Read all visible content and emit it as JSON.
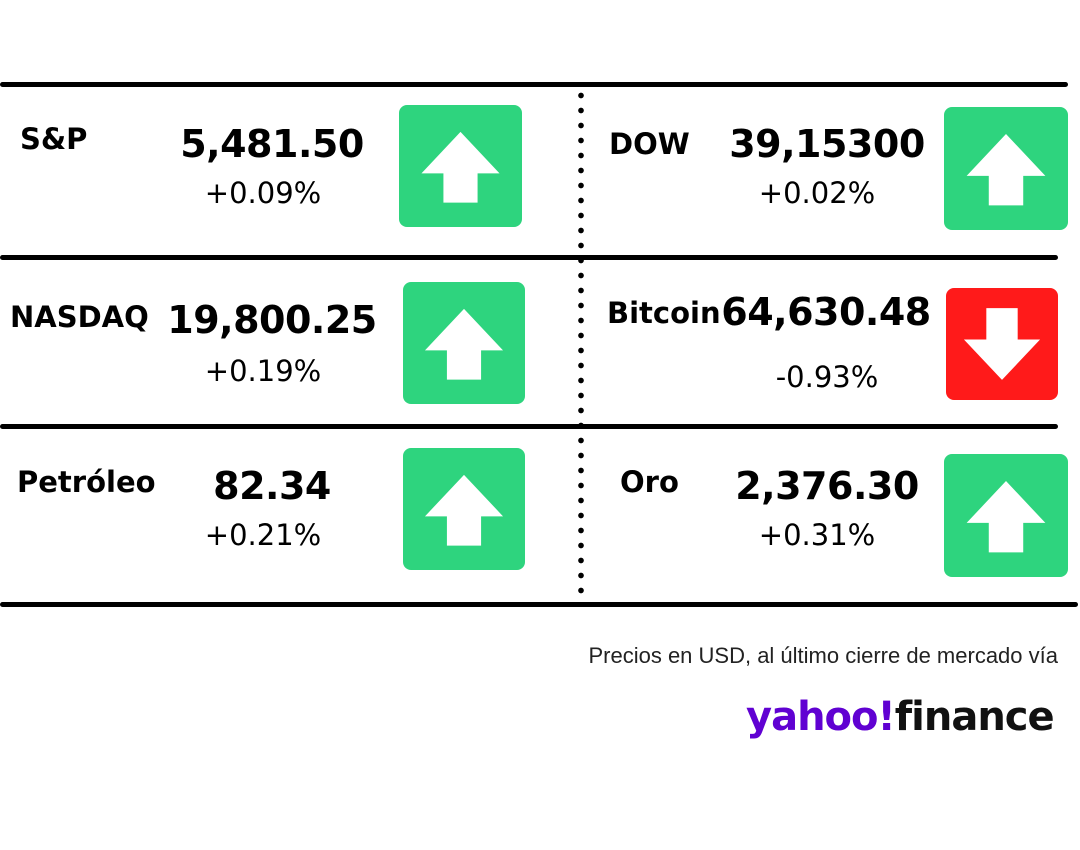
{
  "colors": {
    "up": "#2ed47e",
    "down": "#ff1a1a",
    "text": "#000000",
    "logo_purple": "#6001d2"
  },
  "tickers": [
    {
      "label": "S&P",
      "value": "5,481.50",
      "change": "+0.09%",
      "direction": "up",
      "icon": "arrow-up-icon"
    },
    {
      "label": "DOW",
      "value": "39,15300",
      "change": "+0.02%",
      "direction": "up",
      "icon": "arrow-up-icon"
    },
    {
      "label": "NASDAQ",
      "value": "19,800.25",
      "change": "+0.19%",
      "direction": "up",
      "icon": "arrow-up-icon"
    },
    {
      "label": "Bitcoin",
      "value": "64,630.48",
      "change": "-0.93%",
      "direction": "down",
      "icon": "arrow-down-icon"
    },
    {
      "label": "Petróleo",
      "value": "82.34",
      "change": "+0.21%",
      "direction": "up",
      "icon": "arrow-up-icon"
    },
    {
      "label": "Oro",
      "value": "2,376.30",
      "change": "+0.31%",
      "direction": "up",
      "icon": "arrow-up-icon"
    }
  ],
  "footnote": "Precios en USD, al último cierre de mercado vía",
  "logo": {
    "yahoo": "yahoo!",
    "finance": "finance"
  }
}
